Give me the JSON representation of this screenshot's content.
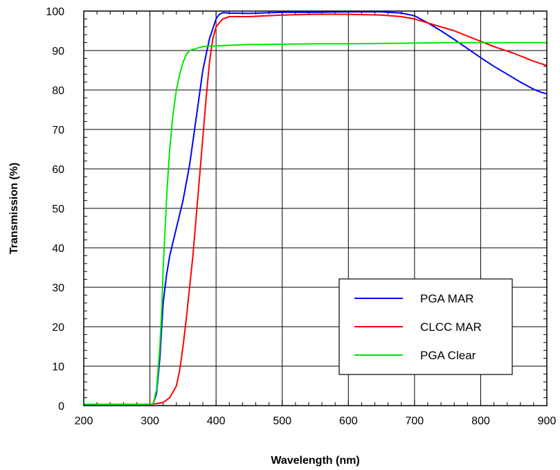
{
  "chart_data": {
    "type": "line",
    "title": "",
    "xlabel": "Wavelength (nm)",
    "ylabel": "Transmission (%)",
    "xlim": [
      200,
      900
    ],
    "ylim": [
      0,
      100
    ],
    "x_ticks": [
      200,
      300,
      400,
      500,
      600,
      700,
      800,
      900
    ],
    "y_ticks": [
      0,
      10,
      20,
      30,
      40,
      50,
      60,
      70,
      80,
      90,
      100
    ],
    "grid": true,
    "legend_position": "lower-right",
    "series": [
      {
        "name": "PGA MAR",
        "color": "#0000ff",
        "points": [
          [
            200,
            0.3
          ],
          [
            300,
            0.3
          ],
          [
            305,
            0.5
          ],
          [
            310,
            3
          ],
          [
            315,
            12
          ],
          [
            320,
            26
          ],
          [
            325,
            33
          ],
          [
            330,
            38
          ],
          [
            340,
            45
          ],
          [
            350,
            52
          ],
          [
            360,
            61
          ],
          [
            370,
            73
          ],
          [
            380,
            85
          ],
          [
            390,
            93
          ],
          [
            400,
            98
          ],
          [
            405,
            99.2
          ],
          [
            410,
            99.6
          ],
          [
            420,
            99.5
          ],
          [
            450,
            99.4
          ],
          [
            500,
            99.7
          ],
          [
            550,
            99.7
          ],
          [
            600,
            99.8
          ],
          [
            650,
            99.8
          ],
          [
            680,
            99.5
          ],
          [
            700,
            98.8
          ],
          [
            720,
            97
          ],
          [
            740,
            95
          ],
          [
            760,
            92.8
          ],
          [
            780,
            90.5
          ],
          [
            800,
            88.2
          ],
          [
            820,
            86
          ],
          [
            840,
            84
          ],
          [
            860,
            82
          ],
          [
            880,
            80.2
          ],
          [
            890,
            79.5
          ],
          [
            900,
            79
          ]
        ]
      },
      {
        "name": "CLCC MAR",
        "color": "#ff0000",
        "points": [
          [
            200,
            0.3
          ],
          [
            300,
            0.3
          ],
          [
            310,
            0.5
          ],
          [
            320,
            0.8
          ],
          [
            330,
            2
          ],
          [
            335,
            3.5
          ],
          [
            340,
            5
          ],
          [
            345,
            9
          ],
          [
            350,
            15
          ],
          [
            355,
            22
          ],
          [
            360,
            30
          ],
          [
            365,
            38
          ],
          [
            370,
            48
          ],
          [
            375,
            58
          ],
          [
            380,
            68
          ],
          [
            385,
            78
          ],
          [
            390,
            87
          ],
          [
            395,
            93
          ],
          [
            400,
            96
          ],
          [
            410,
            98
          ],
          [
            420,
            98.6
          ],
          [
            450,
            98.6
          ],
          [
            500,
            99
          ],
          [
            550,
            99.2
          ],
          [
            600,
            99.2
          ],
          [
            650,
            99
          ],
          [
            680,
            98.6
          ],
          [
            700,
            98
          ],
          [
            730,
            96.5
          ],
          [
            760,
            95
          ],
          [
            790,
            93
          ],
          [
            820,
            91
          ],
          [
            850,
            89.3
          ],
          [
            880,
            87.3
          ],
          [
            900,
            86.2
          ]
        ]
      },
      {
        "name": "PGA Clear",
        "color": "#00e600",
        "points": [
          [
            200,
            0.3
          ],
          [
            300,
            0.3
          ],
          [
            305,
            0.5
          ],
          [
            310,
            4
          ],
          [
            315,
            15
          ],
          [
            318,
            25
          ],
          [
            320,
            35
          ],
          [
            323,
            45
          ],
          [
            326,
            55
          ],
          [
            330,
            65
          ],
          [
            335,
            74
          ],
          [
            340,
            80
          ],
          [
            345,
            84
          ],
          [
            350,
            87
          ],
          [
            355,
            89
          ],
          [
            360,
            90
          ],
          [
            370,
            90.5
          ],
          [
            380,
            91
          ],
          [
            400,
            91.2
          ],
          [
            450,
            91.5
          ],
          [
            500,
            91.6
          ],
          [
            550,
            91.7
          ],
          [
            600,
            91.7
          ],
          [
            650,
            91.8
          ],
          [
            700,
            91.9
          ],
          [
            750,
            92
          ],
          [
            800,
            92
          ],
          [
            850,
            92
          ],
          [
            900,
            92
          ]
        ]
      }
    ]
  }
}
